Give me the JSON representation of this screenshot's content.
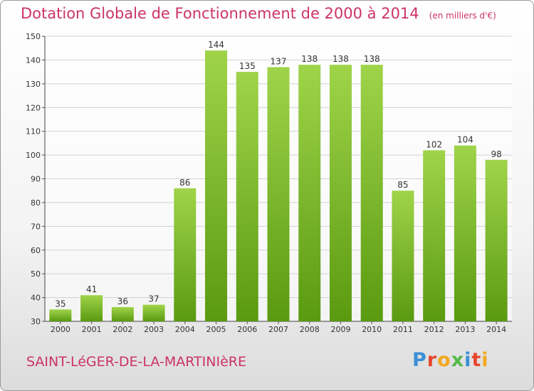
{
  "chart_data": {
    "type": "bar",
    "title": "Dotation Globale de Fonctionnement de 2000 à 2014",
    "subtitle": "(en milliers d'€)",
    "categories": [
      "2000",
      "2001",
      "2002",
      "2003",
      "2004",
      "2005",
      "2006",
      "2007",
      "2008",
      "2009",
      "2010",
      "2011",
      "2012",
      "2013",
      "2014"
    ],
    "values": [
      35,
      41,
      36,
      37,
      86,
      144,
      135,
      137,
      138,
      138,
      138,
      85,
      102,
      104,
      98
    ],
    "ylim": [
      30,
      150
    ],
    "yticks": [
      30,
      40,
      50,
      60,
      70,
      80,
      90,
      100,
      110,
      120,
      130,
      140,
      150
    ],
    "xlabel": "",
    "ylabel": "",
    "grid": true,
    "legend": "none",
    "colors": {
      "bar_top": "#9fd44a",
      "bar_bottom": "#5a9a10",
      "grid": "#d2d2d2",
      "title": "#cc3366"
    }
  },
  "footer": {
    "commune": "SAINT-LéGER-DE-LA-MARTINIèRE"
  },
  "logo": {
    "letters": [
      "P",
      "r",
      "o",
      "x",
      "i",
      "t",
      "i"
    ]
  }
}
